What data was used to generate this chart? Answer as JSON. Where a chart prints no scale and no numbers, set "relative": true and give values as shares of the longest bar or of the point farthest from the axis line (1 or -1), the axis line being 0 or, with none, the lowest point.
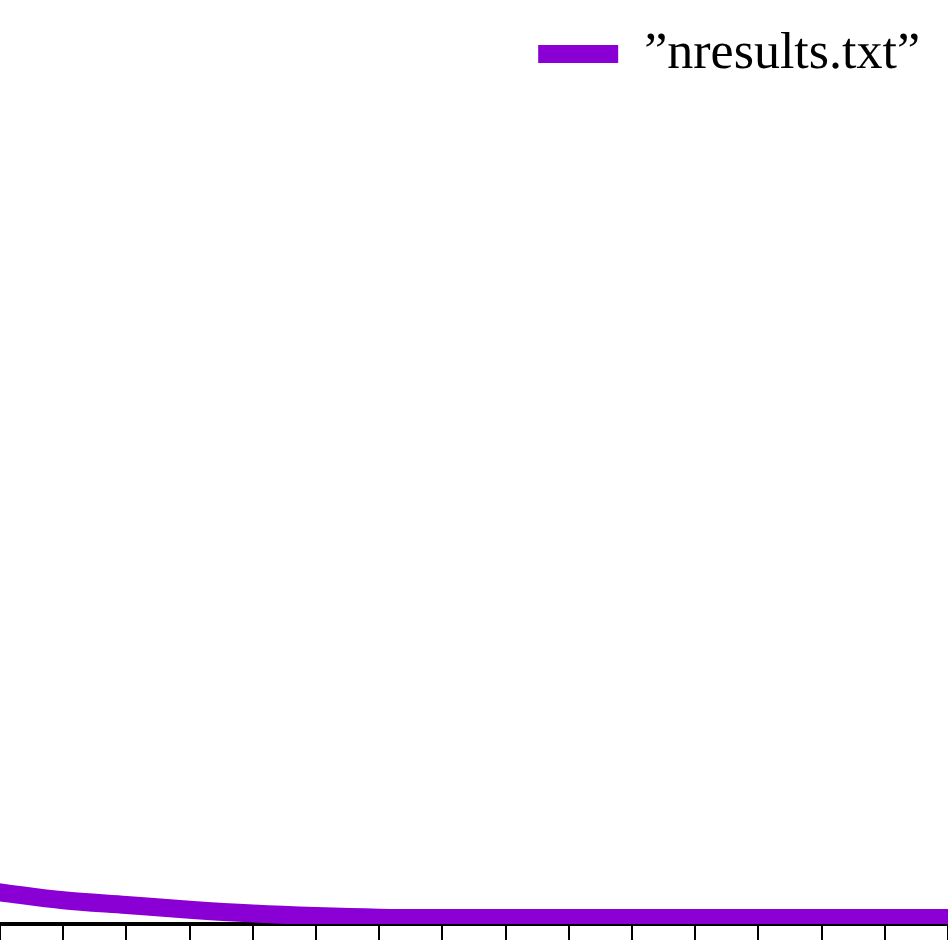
{
  "chart_data": {
    "type": "line",
    "relative": true,
    "categories": [
      null,
      null,
      null,
      null,
      null,
      null,
      null,
      null,
      null,
      null,
      null,
      null,
      null,
      null,
      null,
      null
    ],
    "series": [
      {
        "name": "”nresults.txt”",
        "color": "#8a00d4",
        "values": [
          1,
          0.75,
          0.6,
          0.45,
          0.33,
          0.25,
          0.2,
          0.19,
          0.19,
          0.19,
          0.19,
          0.19,
          0.19,
          0.19,
          0.19,
          0.19
        ]
      }
    ],
    "legend": "top right",
    "grid": false,
    "marker": "none",
    "line_style": "solid"
  }
}
